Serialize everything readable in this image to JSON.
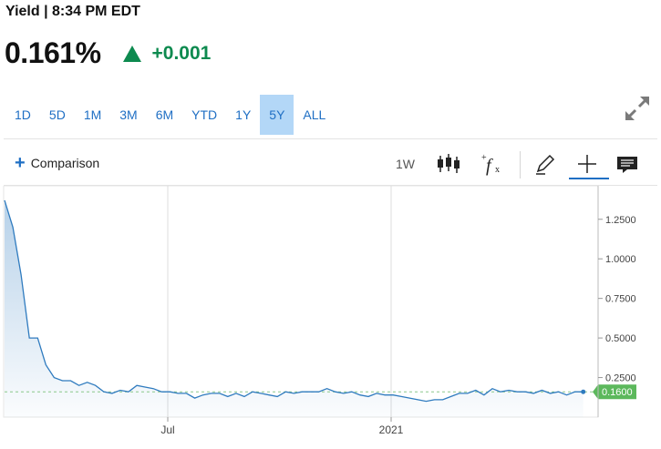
{
  "header": {
    "title": "Yield | 8:34 PM EDT"
  },
  "quote": {
    "value": "0.161%",
    "change": "+0.001",
    "direction": "up",
    "color_up": "#0d8a4f"
  },
  "ranges": [
    "1D",
    "5D",
    "1M",
    "3M",
    "6M",
    "YTD",
    "1Y",
    "5Y",
    "ALL"
  ],
  "active_range": "5Y",
  "toolbar": {
    "comparison_label": "Comparison",
    "interval_label": "1W",
    "icons": [
      "candlestick-icon",
      "function-icon",
      "pencil-icon",
      "crosshair-icon",
      "comment-icon"
    ],
    "accent": "#1f6fc4"
  },
  "chart_data": {
    "type": "area",
    "series": [
      {
        "values": [
          1.37,
          1.2,
          0.9,
          0.5,
          0.5,
          0.33,
          0.25,
          0.23,
          0.23,
          0.2,
          0.22,
          0.2,
          0.16,
          0.15,
          0.17,
          0.16,
          0.2,
          0.19,
          0.18,
          0.16,
          0.16,
          0.15,
          0.15,
          0.12,
          0.14,
          0.15,
          0.15,
          0.13,
          0.15,
          0.13,
          0.16,
          0.15,
          0.14,
          0.13,
          0.16,
          0.15,
          0.16,
          0.16,
          0.16,
          0.18,
          0.16,
          0.15,
          0.16,
          0.14,
          0.13,
          0.15,
          0.14,
          0.14,
          0.13,
          0.12,
          0.11,
          0.1,
          0.11,
          0.11,
          0.13,
          0.15,
          0.15,
          0.17,
          0.14,
          0.18,
          0.16,
          0.17,
          0.16,
          0.16,
          0.15,
          0.17,
          0.15,
          0.16,
          0.14,
          0.16,
          0.16
        ]
      }
    ],
    "x_ticks": [
      "Jul",
      "2021"
    ],
    "y_ticks": [
      "1.2500",
      "1.0000",
      "0.7500",
      "0.5000",
      "0.2500"
    ],
    "ylim": [
      0,
      1.45
    ],
    "last_value_label": "0.1600",
    "reference_value": 0.16,
    "line_color": "#2f7bbf",
    "last_label_color": "#5cb85c",
    "grid": "vertical"
  }
}
